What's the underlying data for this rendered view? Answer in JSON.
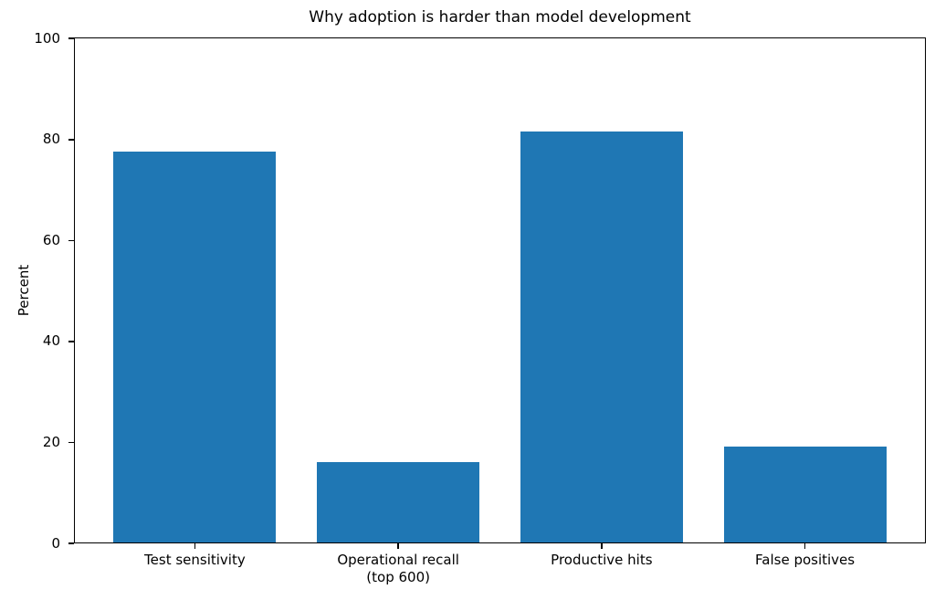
{
  "figure": {
    "background": "#ffffff"
  },
  "chart_data": {
    "type": "bar",
    "title": "Why adoption is harder than model development",
    "xlabel": "",
    "ylabel": "Percent",
    "categories": [
      "Test sensitivity",
      "Operational recall\n(top 600)",
      "Productive hits",
      "False positives"
    ],
    "values": [
      77.5,
      16,
      81.5,
      19
    ],
    "ylim": [
      0,
      100
    ],
    "yticks": [
      0,
      20,
      40,
      60,
      80,
      100
    ],
    "bar_color": "#1f77b4",
    "bar_width_fraction": 0.8,
    "grid": false,
    "legend_position": "none",
    "axis_color": "#000000",
    "text_color": "#000000"
  }
}
